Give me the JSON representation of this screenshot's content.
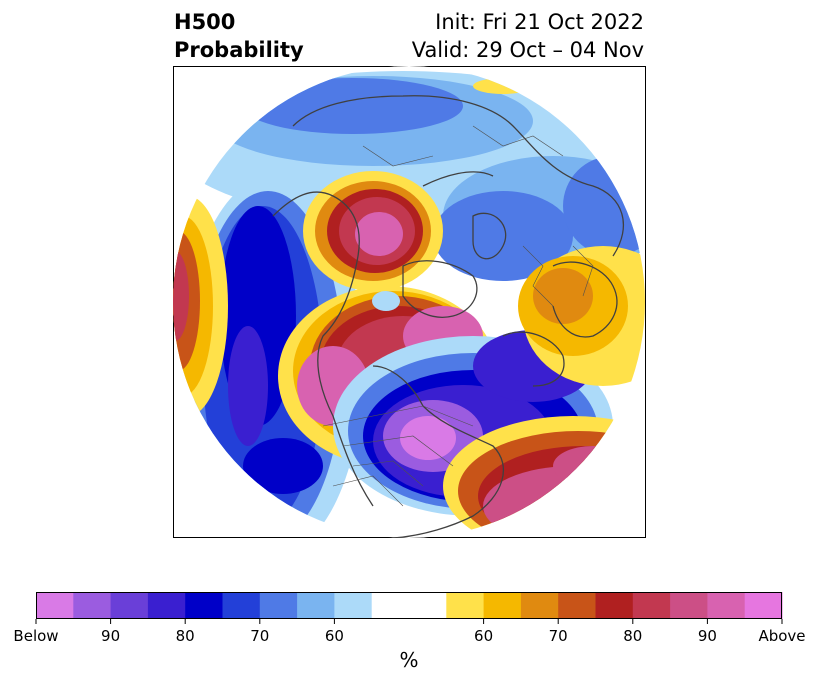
{
  "title": {
    "left_line1": "H500",
    "left_line2": "Probability",
    "right_line1": "Init: Fri 21 Oct 2022",
    "right_line2": "Valid: 29 Oct – 04 Nov"
  },
  "colorbar": {
    "unit": "%",
    "colors": [
      "#d97ae6",
      "#9b5ce0",
      "#6a3fd8",
      "#3a1fd0",
      "#0000c8",
      "#2340d8",
      "#4f7ae6",
      "#7ab4f0",
      "#acdaf9",
      "#ffffff",
      "#ffffff",
      "#ffe14a",
      "#f5b800",
      "#e08a10",
      "#c85418",
      "#b02020",
      "#c23850",
      "#cc4f86",
      "#d862b0",
      "#e676e0"
    ],
    "ticks": [
      {
        "label": "Below",
        "index": 0
      },
      {
        "label": "90",
        "index": 2
      },
      {
        "label": "80",
        "index": 4
      },
      {
        "label": "70",
        "index": 6
      },
      {
        "label": "60",
        "index": 8
      },
      {
        "label": "60",
        "index": 12
      },
      {
        "label": "70",
        "index": 14
      },
      {
        "label": "80",
        "index": 16
      },
      {
        "label": "90",
        "index": 18
      },
      {
        "label": "Above",
        "index": 20
      }
    ]
  }
}
